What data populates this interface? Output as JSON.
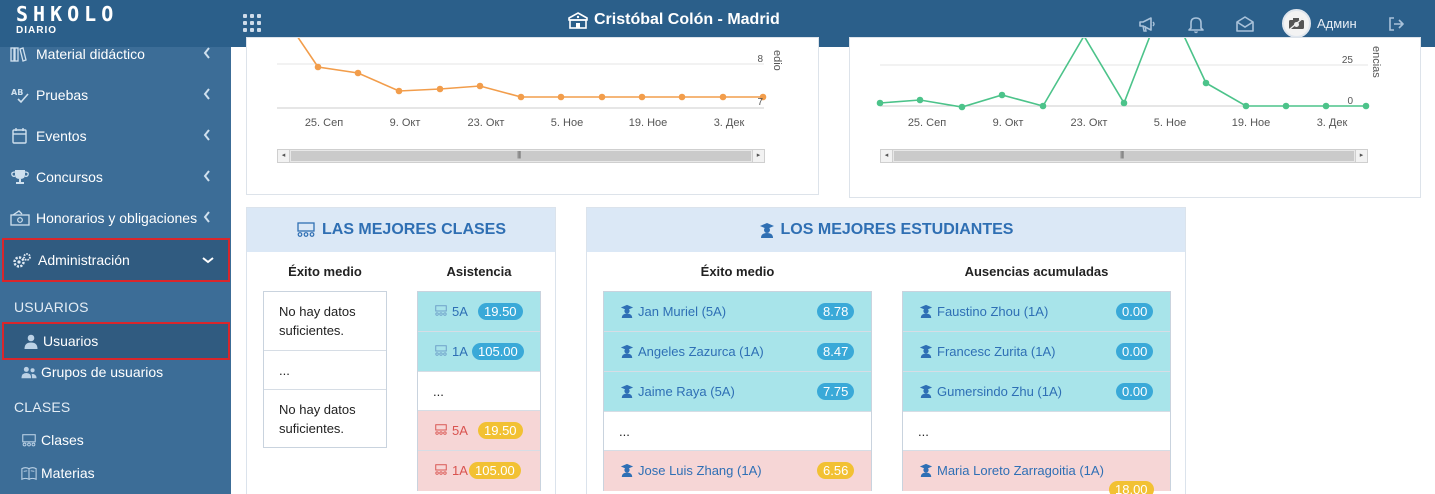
{
  "topbar": {
    "logo_text": "SHKOLO",
    "logo_sub": "DIARIO",
    "school_name": "Cristóbal Colón - Madrid",
    "user_name": "Админ",
    "icons": [
      "grid-icon",
      "megaphone-icon",
      "bell-icon",
      "envelope-icon",
      "avatar",
      "logout-icon"
    ]
  },
  "sidebar": {
    "items": [
      {
        "label": "Material didáctico",
        "icon": "library-icon"
      },
      {
        "label": "Pruebas",
        "icon": "ab-test-icon"
      },
      {
        "label": "Eventos",
        "icon": "calendar-icon"
      },
      {
        "label": "Concursos",
        "icon": "trophy-icon"
      },
      {
        "label": "Honorarios y obligaciones",
        "icon": "money-icon"
      },
      {
        "label": "Administración",
        "icon": "gears-icon"
      }
    ],
    "sections": {
      "usuarios": "USUARIOS",
      "clases": "CLASES"
    },
    "sub_items": [
      {
        "label": "Usuarios",
        "icon": "user-icon"
      },
      {
        "label": "Grupos de usuarios",
        "icon": "users-icon"
      },
      {
        "label": "Clases",
        "icon": "classroom-icon"
      },
      {
        "label": "Materias",
        "icon": "book-icon"
      }
    ]
  },
  "charts": {
    "left": {
      "ylabel": "edio",
      "y_ticks": [
        "8",
        "7"
      ],
      "x_ticks": [
        "25. Сеп",
        "9. Окт",
        "23. Окт",
        "5. Ное",
        "19. Ное",
        "3. Дек"
      ],
      "line_color": "#f29d4b"
    },
    "right": {
      "ylabel": "encias",
      "y_ticks": [
        "25",
        "0"
      ],
      "x_ticks": [
        "25. Сеп",
        "9. Окт",
        "23. Окт",
        "5. Ное",
        "19. Ное",
        "3. Дек"
      ],
      "line_color": "#4cc38a"
    }
  },
  "best_classes": {
    "title": "LAS MEJORES CLASES",
    "col_success": "Éxito medio",
    "col_attendance": "Asistencia",
    "success_rows": [
      "No hay datos suficientes.",
      "...",
      "No hay datos suficientes."
    ],
    "attendance_rows": [
      {
        "cls": "5A",
        "value": "19.50",
        "kind": "top"
      },
      {
        "cls": "1A",
        "value": "105.00",
        "kind": "top"
      },
      {
        "cls": "...",
        "value": "",
        "kind": "dots"
      },
      {
        "cls": "5A",
        "value": "19.50",
        "kind": "bottom"
      },
      {
        "cls": "1A",
        "value": "105.00",
        "kind": "bottom"
      }
    ]
  },
  "best_students": {
    "title": "LOS MEJORES ESTUDIANTES",
    "col_success": "Éxito medio",
    "col_absences": "Ausencias acumuladas",
    "success_rows": [
      {
        "name": "Jan Muriel (5A)",
        "value": "8.78",
        "kind": "top"
      },
      {
        "name": "Angeles Zazurca (1A)",
        "value": "8.47",
        "kind": "top"
      },
      {
        "name": "Jaime Raya (5A)",
        "value": "7.75",
        "kind": "top"
      },
      {
        "name": "...",
        "value": "",
        "kind": "dots"
      },
      {
        "name": "Jose Luis Zhang (1A)",
        "value": "6.56",
        "kind": "bottom"
      }
    ],
    "absence_rows": [
      {
        "name": "Faustino Zhou (1A)",
        "value": "0.00",
        "kind": "top"
      },
      {
        "name": "Francesc Zurita (1A)",
        "value": "0.00",
        "kind": "top"
      },
      {
        "name": "Gumersindo Zhu (1A)",
        "value": "0.00",
        "kind": "top"
      },
      {
        "name": "...",
        "value": "",
        "kind": "dots"
      },
      {
        "name": "Maria Loreto Zarragoitia (1A)",
        "value": "18.00",
        "kind": "bottom"
      }
    ]
  },
  "colors": {
    "topbar": "#2b5f8a",
    "sidebar": "#3c6d97",
    "highlight_border": "#d9262b",
    "panel_head": "#dbe8f6",
    "top_row": "#a8e4ea",
    "bottom_row": "#f6d6d6",
    "badge_blue": "#3aa9d8",
    "badge_yellow": "#f2c133"
  }
}
